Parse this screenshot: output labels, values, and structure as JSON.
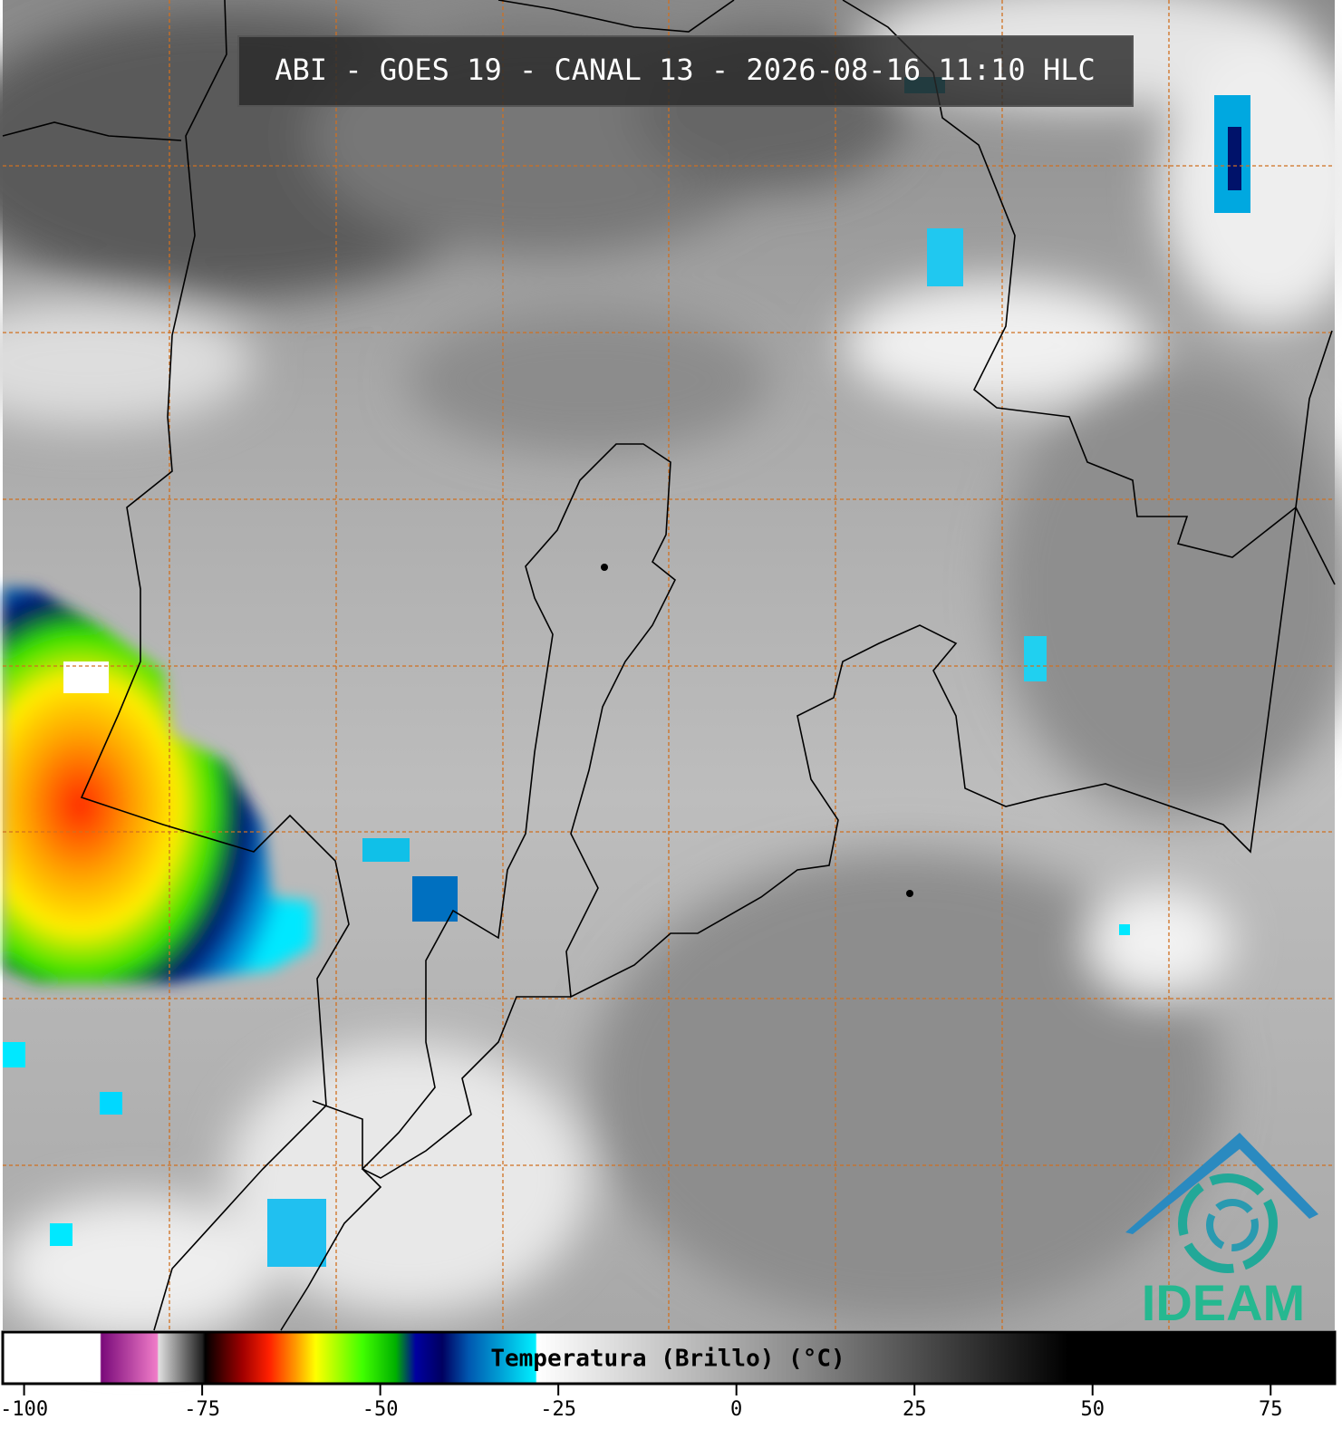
{
  "header": {
    "title": "ABI - GOES 19 - CANAL 13 - 2026-08-16 11:10 HLC"
  },
  "colorbar": {
    "label": "Temperatura (Brillo) (°C)",
    "range": [
      -103,
      84
    ],
    "ticks": [
      -100,
      -75,
      -50,
      -25,
      0,
      25,
      50,
      75
    ]
  },
  "logo": {
    "text": "IDEAM"
  }
}
